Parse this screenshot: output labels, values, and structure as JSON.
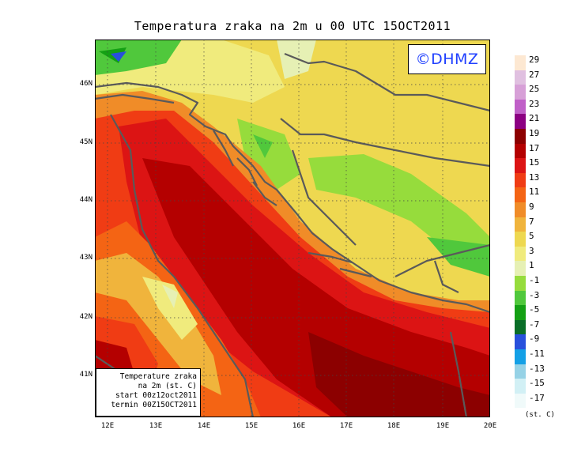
{
  "title": "Temperatura zraka na 2m u 00 UTC 15OCT2011",
  "logo": "©DHMZ",
  "info_box": {
    "line1": "Temperature zraka",
    "line2": "na 2m (st. C)",
    "line3": "start 00z12oct2011",
    "line4": "termin 00Z15OCT2011"
  },
  "lat_labels": [
    "46N",
    "45N",
    "44N",
    "43N",
    "42N",
    "41N"
  ],
  "lon_labels": [
    "12E",
    "13E",
    "14E",
    "15E",
    "16E",
    "17E",
    "18E",
    "19E",
    "20E"
  ],
  "legend": {
    "unit": "(st. C)",
    "labels": [
      "29",
      "27",
      "25",
      "23",
      "21",
      "19",
      "17",
      "15",
      "13",
      "11",
      "9",
      "7",
      "5",
      "3",
      "1",
      "-1",
      "-3",
      "-5",
      "-7",
      "-9",
      "-11",
      "-13",
      "-15",
      "-17"
    ],
    "colors": [
      "#fde8d2",
      "#e0c0e0",
      "#d7a0d7",
      "#c060c8",
      "#8c0082",
      "#8c0000",
      "#b40000",
      "#dc1414",
      "#f03c14",
      "#f46414",
      "#f08c28",
      "#f0b43c",
      "#eed850",
      "#f0eb7d",
      "#e6f0b4",
      "#96dc3c",
      "#50c83c",
      "#14a014",
      "#0a6e28",
      "#2850dc",
      "#14a0e6",
      "#96d2e6",
      "#d2f0f5",
      "#f0fafa"
    ]
  }
}
